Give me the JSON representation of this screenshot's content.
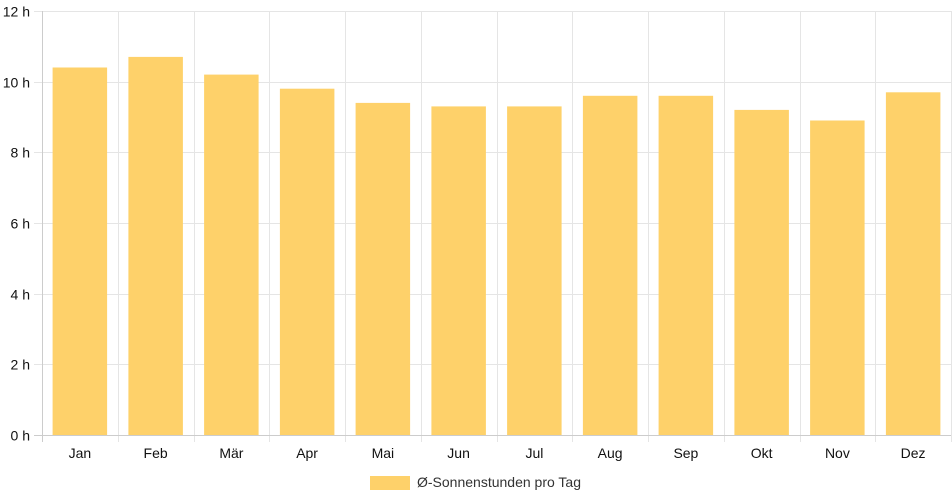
{
  "chart_data": {
    "type": "bar",
    "categories": [
      "Jan",
      "Feb",
      "Mär",
      "Apr",
      "Mai",
      "Jun",
      "Jul",
      "Aug",
      "Sep",
      "Okt",
      "Nov",
      "Dez"
    ],
    "series": [
      {
        "name": "Ø-Sonnenstunden pro Tag",
        "values": [
          10.4,
          10.7,
          10.2,
          9.8,
          9.4,
          9.3,
          9.3,
          9.6,
          9.6,
          9.2,
          8.9,
          9.7
        ],
        "color": "#fed16a"
      }
    ],
    "title": "",
    "xlabel": "",
    "ylabel": "",
    "ylim": [
      0,
      12
    ],
    "yticks": [
      {
        "value": 0,
        "label": "0 h"
      },
      {
        "value": 2,
        "label": "2 h"
      },
      {
        "value": 4,
        "label": "4 h"
      },
      {
        "value": 6,
        "label": "6 h"
      },
      {
        "value": 8,
        "label": "8 h"
      },
      {
        "value": 10,
        "label": "10 h"
      },
      {
        "value": 12,
        "label": "12 h"
      }
    ],
    "grid": true,
    "legend": "bottom-center",
    "colors": {
      "grid": "#e5e5e5",
      "axis": "#cccccc",
      "text": "#111111",
      "legend_text": "#333333"
    }
  }
}
